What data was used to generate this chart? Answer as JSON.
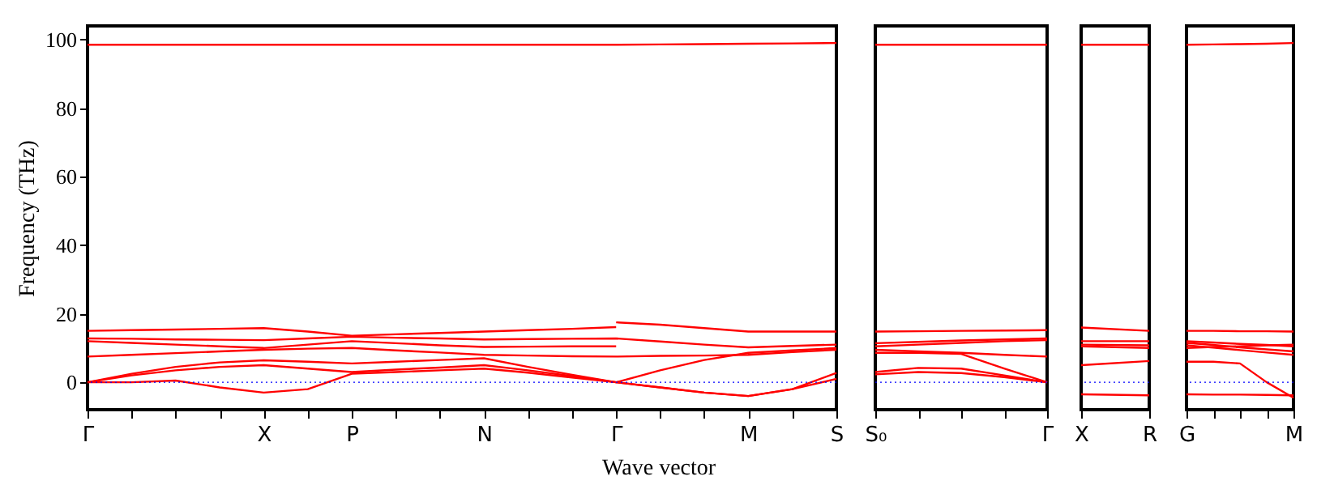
{
  "chart_data": [
    {
      "type": "line",
      "xlabel": "Wave vector",
      "ylabel": "Frequency (THz)",
      "categories": [
        "Γ",
        null,
        null,
        null,
        "X",
        null,
        "P",
        null,
        null,
        "N",
        null,
        null,
        "Γ",
        null,
        null,
        "M",
        null,
        "S"
      ],
      "ylim": [
        -8,
        104
      ],
      "yticks": [
        0,
        20,
        40,
        60,
        80,
        100
      ],
      "grid": false,
      "legend": false,
      "marker": "none",
      "line_style": "solid",
      "ref_lines": [
        {
          "axis": "y",
          "value": 0,
          "color": "#0000ff",
          "line_style": "dotted"
        }
      ],
      "series": [
        {
          "color": "#ff0000",
          "values": [
            98.5,
            98.5,
            98.5,
            98.5,
            98.5,
            98.5,
            98.5,
            98.5,
            98.5,
            98.5,
            98.5,
            98.5,
            98.5,
            98.6,
            98.7,
            98.8,
            98.9,
            99
          ]
        },
        {
          "color": "#ff0000",
          "values": [
            15,
            15.2,
            15.4,
            15.6,
            15.8,
            14.8,
            13.6,
            14,
            14.4,
            14.8,
            15.2,
            15.6,
            16.1,
            null,
            null,
            null,
            null,
            null
          ]
        },
        {
          "color": "#ff0000",
          "values": [
            null,
            null,
            null,
            null,
            null,
            null,
            null,
            null,
            null,
            null,
            null,
            null,
            17.5,
            16.8,
            15.8,
            14.8,
            14.8,
            14.8
          ]
        },
        {
          "color": "#ff0000",
          "values": [
            12.8,
            12.7,
            12.5,
            12.4,
            12.3,
            12.8,
            13.3,
            13,
            12.8,
            12.5,
            12.6,
            12.7,
            12.8,
            11.9,
            11,
            10.2,
            10.6,
            11
          ]
        },
        {
          "color": "#ff0000",
          "values": [
            12,
            11.5,
            11,
            10.5,
            10,
            11,
            12,
            11.4,
            10.8,
            10.3,
            10.4,
            10.5,
            10.5,
            null,
            null,
            null,
            null,
            null
          ]
        },
        {
          "color": "#ff0000",
          "values": [
            7.5,
            8,
            8.5,
            9,
            9.5,
            9.8,
            10,
            9.3,
            8.7,
            8,
            7.8,
            7.6,
            7.5,
            7.7,
            7.8,
            8,
            8.8,
            9.5
          ]
        },
        {
          "color": "#ff0000",
          "values": [
            0,
            2.5,
            4.5,
            5.8,
            6.4,
            6,
            5.5,
            6,
            6.5,
            7,
            4.5,
            2.2,
            0,
            3.5,
            6.5,
            8.6,
            9.3,
            10
          ]
        },
        {
          "color": "#ff0000",
          "values": [
            0,
            2,
            3.5,
            4.5,
            5,
            4,
            3,
            3.7,
            4.3,
            5,
            3.5,
            1.8,
            0,
            -1.5,
            -3,
            -4,
            -2,
            1
          ]
        },
        {
          "color": "#ff0000",
          "values": [
            0,
            0,
            0.5,
            -1.5,
            -3,
            -2,
            2.5,
            3,
            3.5,
            4,
            2.8,
            1.4,
            0,
            -1.5,
            -3,
            -4,
            -2,
            2.7
          ]
        }
      ]
    },
    {
      "type": "line",
      "categories": [
        "S₀",
        null,
        null,
        null,
        "Γ"
      ],
      "ylim": [
        -8,
        104
      ],
      "yticks": [
        0,
        20,
        40,
        60,
        80,
        100
      ],
      "tick_labels": "x",
      "grid": false,
      "legend": false,
      "marker": "none",
      "line_style": "solid",
      "ref_lines": [
        {
          "axis": "y",
          "value": 0,
          "color": "#0000ff",
          "line_style": "dotted"
        }
      ],
      "series": [
        {
          "color": "#ff0000",
          "values": [
            98.5,
            98.5,
            98.5,
            98.5,
            98.5
          ]
        },
        {
          "color": "#ff0000",
          "values": [
            14.8,
            14.9,
            15,
            15.1,
            15.2
          ]
        },
        {
          "color": "#ff0000",
          "values": [
            11.4,
            11.8,
            12.2,
            12.5,
            12.8
          ]
        },
        {
          "color": "#ff0000",
          "values": [
            10.5,
            11,
            11.5,
            12,
            12.3
          ]
        },
        {
          "color": "#ff0000",
          "values": [
            9.5,
            9,
            8.6,
            8,
            7.5
          ]
        },
        {
          "color": "#ff0000",
          "values": [
            8.6,
            8.6,
            8.3,
            4,
            0
          ]
        },
        {
          "color": "#ff0000",
          "values": [
            3,
            4.2,
            4,
            2,
            0
          ]
        },
        {
          "color": "#ff0000",
          "values": [
            2.3,
            3,
            2.7,
            1.5,
            0
          ]
        }
      ]
    },
    {
      "type": "line",
      "categories": [
        "X",
        "R"
      ],
      "ylim": [
        -8,
        104
      ],
      "yticks": [
        0,
        20,
        40,
        60,
        80,
        100
      ],
      "tick_labels": "x",
      "grid": false,
      "legend": false,
      "marker": "none",
      "line_style": "solid",
      "ref_lines": [
        {
          "axis": "y",
          "value": 0,
          "color": "#0000ff",
          "line_style": "dotted"
        }
      ],
      "series": [
        {
          "color": "#ff0000",
          "values": [
            98.5,
            98.5
          ]
        },
        {
          "color": "#ff0000",
          "values": [
            16,
            15
          ]
        },
        {
          "color": "#ff0000",
          "values": [
            12,
            12
          ]
        },
        {
          "color": "#ff0000",
          "values": [
            11,
            10.8
          ]
        },
        {
          "color": "#ff0000",
          "values": [
            10.5,
            10
          ]
        },
        {
          "color": "#ff0000",
          "values": [
            5,
            6.2
          ]
        },
        {
          "color": "#ff0000",
          "values": [
            -3.5,
            -3.8
          ]
        }
      ]
    },
    {
      "type": "line",
      "categories": [
        "G",
        null,
        null,
        null,
        "M"
      ],
      "ylim": [
        -8,
        104
      ],
      "yticks": [
        0,
        20,
        40,
        60,
        80,
        100
      ],
      "tick_labels": "x",
      "grid": false,
      "legend": false,
      "marker": "none",
      "line_style": "solid",
      "ref_lines": [
        {
          "axis": "y",
          "value": 0,
          "color": "#0000ff",
          "line_style": "dotted"
        }
      ],
      "series": [
        {
          "color": "#ff0000",
          "values": [
            98.5,
            98.6,
            98.7,
            98.8,
            99
          ]
        },
        {
          "color": "#ff0000",
          "values": [
            15,
            15,
            14.9,
            14.9,
            14.8
          ]
        },
        {
          "color": "#ff0000",
          "values": [
            12,
            11.6,
            11.2,
            10.9,
            10.5
          ]
        },
        {
          "color": "#ff0000",
          "values": [
            11.5,
            10.9,
            10.2,
            9.6,
            9
          ]
        },
        {
          "color": "#ff0000",
          "values": [
            10.8,
            10.1,
            9.4,
            8.7,
            8
          ]
        },
        {
          "color": "#ff0000",
          "values": [
            10,
            10.3,
            10.5,
            10.8,
            11
          ]
        },
        {
          "color": "#ff0000",
          "values": [
            6,
            6,
            5.5,
            0,
            -4.5
          ]
        },
        {
          "color": "#ff0000",
          "values": [
            -3.5,
            -3.6,
            -3.6,
            -3.7,
            -3.8
          ]
        }
      ]
    }
  ]
}
